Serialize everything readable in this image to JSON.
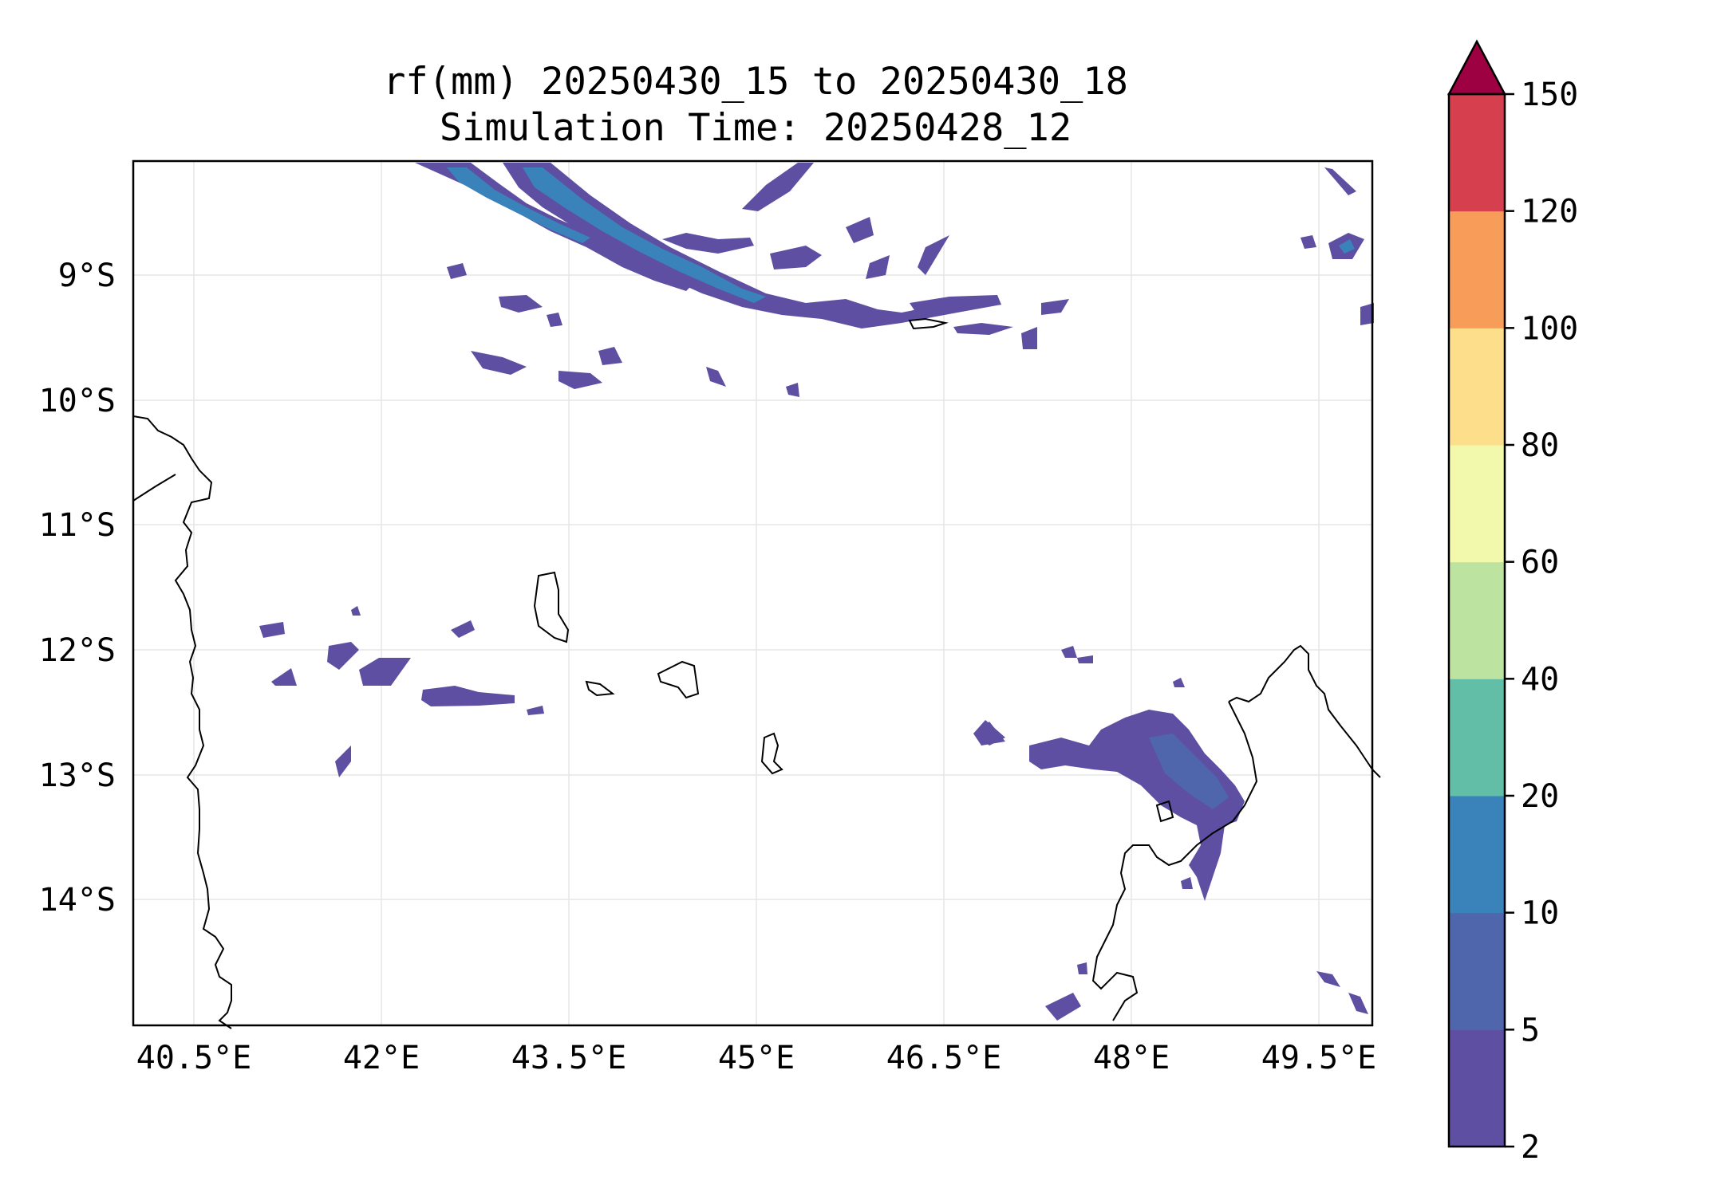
{
  "title": {
    "line1": "rf(mm) 20250430_15 to 20250430_18",
    "line2": "Simulation Time: 20250428_12"
  },
  "map": {
    "x_ticks": [
      "40.5°E",
      "42°E",
      "43.5°E",
      "45°E",
      "46.5°E",
      "48°E",
      "49.5°E"
    ],
    "y_ticks": [
      "9°S",
      "10°S",
      "11°S",
      "12°S",
      "13°S",
      "14°S"
    ],
    "grid": true,
    "projection": "PlateCarree"
  },
  "colorbar": {
    "ticks": [
      "150",
      "120",
      "100",
      "80",
      "60",
      "40",
      "20",
      "10",
      "5",
      "2"
    ],
    "extend": "max",
    "levels": [
      2,
      5,
      10,
      20,
      40,
      60,
      80,
      100,
      120,
      150
    ],
    "colors": [
      "#5e4fa2",
      "#4f66ad",
      "#3a82ba",
      "#62bea6",
      "#bce4a0",
      "#f3f9ac",
      "#fddf8b",
      "#f89d59",
      "#d6404e"
    ],
    "over_color": "#9e0142"
  },
  "chart_data": {
    "type": "contourf",
    "variable": "rf(mm)",
    "xlim": [
      40.25,
      49.9
    ],
    "ylim": [
      -14.9,
      -8.1
    ],
    "unit_labels": {
      "x": "°E",
      "y": "°S"
    }
  }
}
